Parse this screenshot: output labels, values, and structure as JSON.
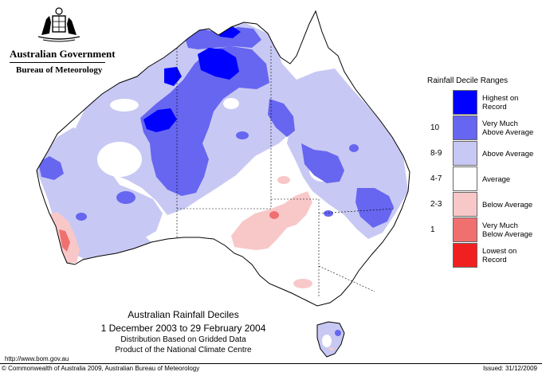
{
  "logo": {
    "crest_icon": "commonwealth-coat-of-arms",
    "government": "Australian Government",
    "bureau": "Bureau of Meteorology"
  },
  "map": {
    "title": "Australian Rainfall Deciles",
    "period": "1 December 2003 to 29 February 2004",
    "subtitle_1": "Distribution Based on Gridded Data",
    "subtitle_2": "Product of the National Climate Centre"
  },
  "legend": {
    "title": "Rainfall Decile Ranges",
    "items": [
      {
        "range": "",
        "label": "Highest on Record",
        "color": "#0000ff"
      },
      {
        "range": "10",
        "label": "Very Much Above Average",
        "color": "#6666f0"
      },
      {
        "range": "8-9",
        "label": "Above Average",
        "color": "#c8c8f4"
      },
      {
        "range": "4-7",
        "label": "Average",
        "color": "#ffffff"
      },
      {
        "range": "2-3",
        "label": "Below Average",
        "color": "#f8c8c8"
      },
      {
        "range": "1",
        "label": "Very Much Below Average",
        "color": "#f07070"
      },
      {
        "range": "",
        "label": "Lowest on Record",
        "color": "#f02020"
      }
    ]
  },
  "footer": {
    "url": "http://www.bom.gov.au",
    "copyright": "© Commonwealth of Australia 2009, Australian Bureau of Meteorology",
    "issued": "Issued: 31/12/2009"
  }
}
